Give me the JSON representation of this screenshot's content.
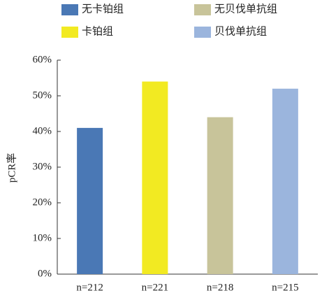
{
  "chart_data": {
    "type": "bar",
    "ylabel": "pCR率",
    "categories": [
      "n=212",
      "n=221",
      "n=218",
      "n=215"
    ],
    "values": [
      41,
      54,
      44,
      52
    ],
    "colors": [
      "#4a78b5",
      "#f2ea22",
      "#c8c49a",
      "#9bb5dd"
    ],
    "legend": [
      "无卡铂组",
      "无贝伐单抗组",
      "卡铂组",
      "贝伐单抗组"
    ],
    "legend_colors": [
      "#4a78b5",
      "#c8c49a",
      "#f2ea22",
      "#9bb5dd"
    ],
    "ylim": [
      0,
      60
    ],
    "yticks": [
      {
        "value": 0,
        "label": "0%"
      },
      {
        "value": 10,
        "label": "10%"
      },
      {
        "value": 20,
        "label": "20%"
      },
      {
        "value": 30,
        "label": "30%"
      },
      {
        "value": 40,
        "label": "40%"
      },
      {
        "value": 50,
        "label": "50%"
      },
      {
        "value": 60,
        "label": "60%"
      }
    ]
  }
}
